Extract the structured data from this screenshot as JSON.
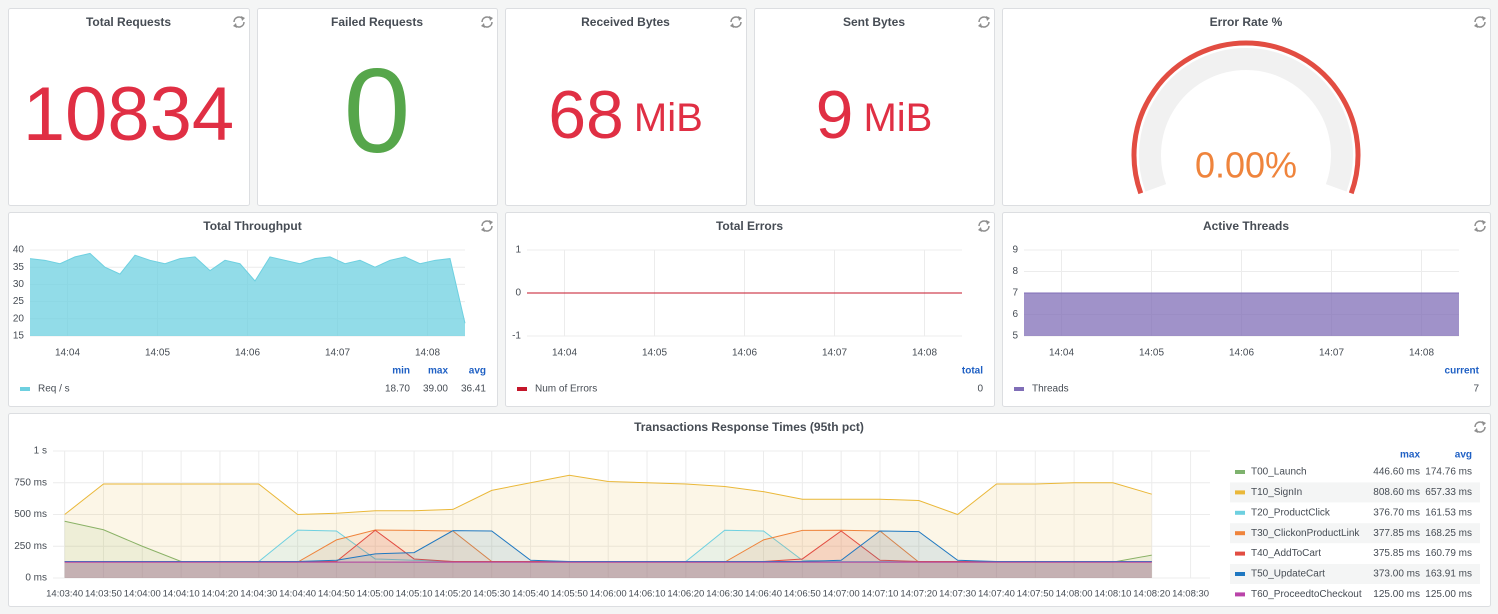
{
  "chart_data": [
    {
      "type": "stat",
      "title": "Total Requests",
      "value": 10834,
      "color": "#e02f44"
    },
    {
      "type": "stat",
      "title": "Failed Requests",
      "value": 0,
      "color": "#56a64b"
    },
    {
      "type": "stat",
      "title": "Received Bytes",
      "value": 68,
      "unit": "MiB",
      "color": "#e02f44"
    },
    {
      "type": "stat",
      "title": "Sent Bytes",
      "value": 9,
      "unit": "MiB",
      "color": "#e02f44"
    },
    {
      "type": "gauge",
      "title": "Error Rate %",
      "value": 0,
      "value_label": "0.00%",
      "ylim": [
        0,
        100
      ],
      "color": "#ef843c",
      "band_color": "#e24d42"
    },
    {
      "type": "area",
      "title": "Total Throughput",
      "x": [
        "14:03:35",
        "14:03:45",
        "14:03:55",
        "14:04:05",
        "14:04:15",
        "14:04:25",
        "14:04:35",
        "14:04:45",
        "14:04:55",
        "14:05:05",
        "14:05:15",
        "14:05:25",
        "14:05:35",
        "14:05:45",
        "14:05:55",
        "14:06:05",
        "14:06:15",
        "14:06:25",
        "14:06:35",
        "14:06:45",
        "14:06:55",
        "14:07:05",
        "14:07:15",
        "14:07:25",
        "14:07:35",
        "14:07:45",
        "14:07:55",
        "14:08:05",
        "14:08:15",
        "14:08:25"
      ],
      "xlim": [
        "14:03:35",
        "14:08:25"
      ],
      "xticks": [
        "14:04",
        "14:05",
        "14:06",
        "14:07",
        "14:08"
      ],
      "ylim": [
        15,
        40
      ],
      "yticks": [
        15,
        20,
        25,
        30,
        35,
        40
      ],
      "grid": true,
      "stat_names": [
        "min",
        "max",
        "avg"
      ],
      "series": [
        {
          "name": "Req / s",
          "color": "#6ed0e0",
          "values": [
            37.5,
            37,
            36,
            38,
            39,
            35,
            33,
            38.5,
            37,
            36,
            37.5,
            38,
            34,
            37,
            36,
            31,
            38,
            37,
            36,
            37.5,
            38,
            36,
            37,
            35,
            37,
            38,
            36,
            37,
            37.5,
            18.7
          ],
          "stats": [
            {
              "value": 18.7,
              "label": "18.70"
            },
            {
              "value": 39,
              "label": "39.00"
            },
            {
              "value": 36.41,
              "label": "36.41"
            }
          ]
        }
      ]
    },
    {
      "type": "line",
      "title": "Total Errors",
      "x": [
        "14:03:35",
        "14:03:45",
        "14:03:55",
        "14:04:05",
        "14:04:15",
        "14:04:25",
        "14:04:35",
        "14:04:45",
        "14:04:55",
        "14:05:05",
        "14:05:15",
        "14:05:25",
        "14:05:35",
        "14:05:45",
        "14:05:55",
        "14:06:05",
        "14:06:15",
        "14:06:25",
        "14:06:35",
        "14:06:45",
        "14:06:55",
        "14:07:05",
        "14:07:15",
        "14:07:25",
        "14:07:35",
        "14:07:45",
        "14:07:55",
        "14:08:05",
        "14:08:15",
        "14:08:25"
      ],
      "xlim": [
        "14:03:35",
        "14:08:25"
      ],
      "xticks": [
        "14:04",
        "14:05",
        "14:06",
        "14:07",
        "14:08"
      ],
      "ylim": [
        -1,
        1
      ],
      "yticks": [
        -1,
        0,
        1
      ],
      "grid": true,
      "stat_names": [
        "total"
      ],
      "series": [
        {
          "name": "Num of Errors",
          "color": "#c4162a",
          "values": [
            0,
            0,
            0,
            0,
            0,
            0,
            0,
            0,
            0,
            0,
            0,
            0,
            0,
            0,
            0,
            0,
            0,
            0,
            0,
            0,
            0,
            0,
            0,
            0,
            0,
            0,
            0,
            0,
            0,
            0
          ],
          "stats": [
            0
          ]
        }
      ]
    },
    {
      "type": "area",
      "title": "Active Threads",
      "x": [
        "14:03:35",
        "14:03:45",
        "14:03:55",
        "14:04:05",
        "14:04:15",
        "14:04:25",
        "14:04:35",
        "14:04:45",
        "14:04:55",
        "14:05:05",
        "14:05:15",
        "14:05:25",
        "14:05:35",
        "14:05:45",
        "14:05:55",
        "14:06:05",
        "14:06:15",
        "14:06:25",
        "14:06:35",
        "14:06:45",
        "14:06:55",
        "14:07:05",
        "14:07:15",
        "14:07:25",
        "14:07:35",
        "14:07:45",
        "14:07:55",
        "14:08:05",
        "14:08:15",
        "14:08:25"
      ],
      "xlim": [
        "14:03:35",
        "14:08:25"
      ],
      "xticks": [
        "14:04",
        "14:05",
        "14:06",
        "14:07",
        "14:08"
      ],
      "ylim": [
        5,
        9
      ],
      "yticks": [
        5,
        6,
        7,
        8,
        9
      ],
      "grid": true,
      "stat_names": [
        "current"
      ],
      "series": [
        {
          "name": "Threads",
          "color": "#806eb7",
          "values": [
            7,
            7,
            7,
            7,
            7,
            7,
            7,
            7,
            7,
            7,
            7,
            7,
            7,
            7,
            7,
            7,
            7,
            7,
            7,
            7,
            7,
            7,
            7,
            7,
            7,
            7,
            7,
            7,
            7,
            7
          ],
          "stats": [
            7
          ]
        }
      ]
    },
    {
      "type": "area",
      "title": "Transactions Response Times (95th pct)",
      "x": [
        "14:03:40",
        "14:03:50",
        "14:04:00",
        "14:04:10",
        "14:04:20",
        "14:04:30",
        "14:04:40",
        "14:04:50",
        "14:05:00",
        "14:05:10",
        "14:05:20",
        "14:05:30",
        "14:05:40",
        "14:05:50",
        "14:06:00",
        "14:06:10",
        "14:06:20",
        "14:06:30",
        "14:06:40",
        "14:06:50",
        "14:07:00",
        "14:07:10",
        "14:07:20",
        "14:07:30",
        "14:07:40",
        "14:07:50",
        "14:08:00",
        "14:08:10",
        "14:08:20"
      ],
      "xlim": [
        "14:03:37",
        "14:08:35"
      ],
      "xticks": [
        "14:03:40",
        "14:03:50",
        "14:04:00",
        "14:04:10",
        "14:04:20",
        "14:04:30",
        "14:04:40",
        "14:04:50",
        "14:05:00",
        "14:05:10",
        "14:05:20",
        "14:05:30",
        "14:05:40",
        "14:05:50",
        "14:06:00",
        "14:06:10",
        "14:06:20",
        "14:06:30",
        "14:06:40",
        "14:06:50",
        "14:07:00",
        "14:07:10",
        "14:07:20",
        "14:07:30",
        "14:07:40",
        "14:07:50",
        "14:08:00",
        "14:08:10",
        "14:08:20",
        "14:08:30"
      ],
      "ylim": [
        0,
        1000
      ],
      "yticks": [
        {
          "value": 0,
          "label": "0 ms"
        },
        {
          "value": 250,
          "label": "250 ms"
        },
        {
          "value": 500,
          "label": "500 ms"
        },
        {
          "value": 750,
          "label": "750 ms"
        },
        {
          "value": 1000,
          "label": "1 s"
        }
      ],
      "grid": true,
      "stat_names": [
        "max",
        "avg"
      ],
      "series": [
        {
          "name": "T00_Launch",
          "color": "#7eb26d",
          "values": [
            446.6,
            380,
            250,
            130,
            130,
            125,
            125,
            125,
            125,
            125,
            125,
            125,
            125,
            125,
            125,
            125,
            125,
            125,
            125,
            125,
            125,
            125,
            125,
            125,
            125,
            125,
            125,
            125,
            180
          ],
          "stats": [
            {
              "value": 446.6,
              "label": "446.60 ms"
            },
            {
              "value": 174.76,
              "label": "174.76 ms"
            }
          ]
        },
        {
          "name": "T10_SignIn",
          "color": "#eab839",
          "values": [
            500,
            740,
            740,
            740,
            740,
            740,
            500,
            510,
            530,
            530,
            540,
            690,
            750,
            808.6,
            760,
            750,
            740,
            720,
            680,
            620,
            620,
            620,
            610,
            500,
            740,
            740,
            750,
            750,
            660
          ],
          "stats": [
            {
              "value": 808.6,
              "label": "808.60 ms"
            },
            {
              "value": 657.33,
              "label": "657.33 ms"
            }
          ]
        },
        {
          "name": "T20_ProductClick",
          "color": "#6ed0e0",
          "values": [
            130,
            130,
            130,
            130,
            130,
            130,
            376.7,
            370,
            150,
            140,
            130,
            130,
            130,
            130,
            130,
            130,
            130,
            376,
            370,
            140,
            130,
            130,
            130,
            130,
            130,
            130,
            130,
            130,
            130
          ],
          "stats": [
            {
              "value": 376.7,
              "label": "376.70 ms"
            },
            {
              "value": 161.53,
              "label": "161.53 ms"
            }
          ]
        },
        {
          "name": "T30_ClickonProductLink",
          "color": "#ef843c",
          "values": [
            125,
            125,
            125,
            125,
            125,
            125,
            125,
            300,
            377.85,
            375,
            370,
            130,
            125,
            125,
            125,
            125,
            125,
            125,
            300,
            375,
            376,
            370,
            125,
            125,
            125,
            125,
            125,
            125,
            125
          ],
          "stats": [
            {
              "value": 377.85,
              "label": "377.85 ms"
            },
            {
              "value": 168.25,
              "label": "168.25 ms"
            }
          ]
        },
        {
          "name": "T40_AddToCart",
          "color": "#e24d42",
          "values": [
            130,
            130,
            130,
            130,
            130,
            130,
            130,
            130,
            375.85,
            150,
            130,
            130,
            130,
            130,
            130,
            130,
            130,
            130,
            130,
            150,
            370,
            140,
            130,
            130,
            130,
            130,
            130,
            130,
            130
          ],
          "stats": [
            {
              "value": 375.85,
              "label": "375.85 ms"
            },
            {
              "value": 160.79,
              "label": "160.79 ms"
            }
          ]
        },
        {
          "name": "T50_UpdateCart",
          "color": "#1f78c1",
          "values": [
            130,
            130,
            130,
            130,
            130,
            130,
            130,
            140,
            190,
            200,
            373,
            370,
            140,
            130,
            130,
            130,
            130,
            130,
            130,
            130,
            140,
            370,
            365,
            140,
            130,
            130,
            130,
            130,
            130
          ],
          "stats": [
            {
              "value": 373,
              "label": "373.00 ms"
            },
            {
              "value": 163.91,
              "label": "163.91 ms"
            }
          ]
        },
        {
          "name": "T60_ProceedtoCheckout",
          "color": "#ba43a9",
          "values": [
            125,
            125,
            125,
            125,
            125,
            125,
            125,
            125,
            125,
            125,
            125,
            125,
            125,
            125,
            125,
            125,
            125,
            125,
            125,
            125,
            125,
            125,
            125,
            125,
            125,
            125,
            125,
            125,
            125
          ],
          "stats": [
            {
              "value": 125,
              "label": "125.00 ms"
            },
            {
              "value": 125,
              "label": "125.00 ms"
            }
          ]
        }
      ]
    }
  ]
}
